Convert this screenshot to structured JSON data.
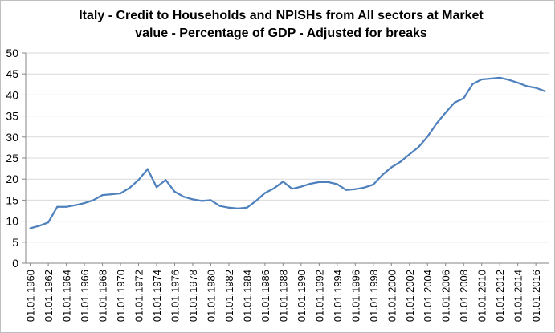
{
  "chart_data": {
    "type": "line",
    "title": "Italy - Credit to Households and NPISHs from All sectors at Market\nvalue - Percentage of GDP - Adjusted for breaks",
    "xlabel": "",
    "ylabel": "",
    "ylim": [
      0,
      50
    ],
    "yticks": [
      0,
      5,
      10,
      15,
      20,
      25,
      30,
      35,
      40,
      45,
      50
    ],
    "xtick_labels": [
      "01.01.1960",
      "01.01.1962",
      "01.01.1964",
      "01.01.1966",
      "01.01.1968",
      "01.01.1970",
      "01.01.1972",
      "01.01.1974",
      "01.01.1976",
      "01.01.1978",
      "01.01.1980",
      "01.01.1982",
      "01.01.1984",
      "01.01.1986",
      "01.01.1988",
      "01.01.1990",
      "01.01.1992",
      "01.01.1994",
      "01.01.1996",
      "01.01.1998",
      "01.01.2000",
      "01.01.2002",
      "01.01.2004",
      "01.01.2006",
      "01.01.2008",
      "01.01.2010",
      "01.01.2012",
      "01.01.2014",
      "01.01.2016"
    ],
    "grid": true,
    "legend": "none",
    "color": "#4f81bd",
    "series": [
      {
        "x": [
          1960,
          1961,
          1962,
          1963,
          1964,
          1965,
          1966,
          1967,
          1968,
          1969,
          1970,
          1971,
          1972,
          1973,
          1974,
          1975,
          1976,
          1977,
          1978,
          1979,
          1980,
          1981,
          1982,
          1983,
          1984,
          1985,
          1986,
          1987,
          1988,
          1989,
          1990,
          1991,
          1992,
          1993,
          1994,
          1995,
          1996,
          1997,
          1998,
          1999,
          2000,
          2001,
          2002,
          2003,
          2004,
          2005,
          2006,
          2007,
          2008,
          2009,
          2010,
          2011,
          2012,
          2013,
          2014,
          2015,
          2016,
          2017
        ],
        "values": [
          8.3,
          8.9,
          9.7,
          13.4,
          13.4,
          13.8,
          14.3,
          15.0,
          16.2,
          16.4,
          16.6,
          17.9,
          19.8,
          22.4,
          18.1,
          19.8,
          17.0,
          15.8,
          15.2,
          14.8,
          15.0,
          13.6,
          13.2,
          13.0,
          13.2,
          14.8,
          16.7,
          17.8,
          19.4,
          17.7,
          18.2,
          18.9,
          19.3,
          19.3,
          18.8,
          17.4,
          17.6,
          18.0,
          18.7,
          21.0,
          22.8,
          24.1,
          25.9,
          27.6,
          30.1,
          33.2,
          35.8,
          38.2,
          39.2,
          42.6,
          43.7,
          43.9,
          44.1,
          43.6,
          42.9,
          42.1,
          41.7,
          40.9
        ]
      }
    ]
  }
}
